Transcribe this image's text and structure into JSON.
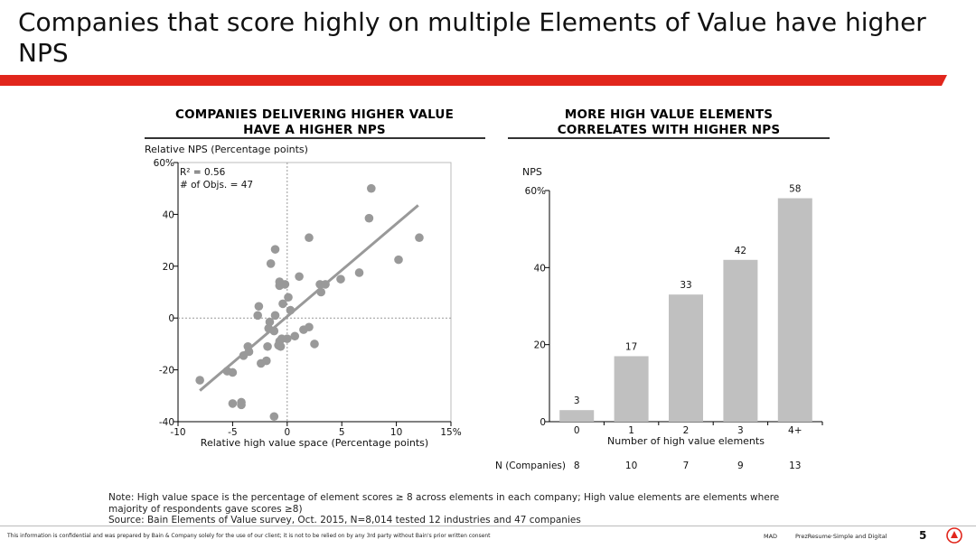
{
  "slide": {
    "title": "Companies that score highly on multiple Elements of Value have higher NPS",
    "accent_color": "#e1261c",
    "note_lines": [
      "Note: High value space is the percentage of element scores ≥ 8 across elements in each company; High value elements are elements where",
      "majority of respondents gave scores ≥8)",
      "Source: Bain Elements of Value survey, Oct. 2015, N=8,014 tested 12 industries and 47 companies"
    ],
    "footer_text": "This information is confidential and was prepared by Bain & Company solely for the use of our client; it is not to be relied on by any 3rd party without Bain's prior written consent",
    "footer_mid": "MAD",
    "footer_right": "PrezResume·Simple and Digital",
    "page_number": "5",
    "logo_icon": "bain-logo-icon"
  },
  "chart_data": [
    {
      "type": "scatter",
      "title_lines": [
        "COMPANIES DELIVERING HIGHER VALUE",
        "HAVE A HIGHER NPS"
      ],
      "ylabel": "Relative NPS (Percentage points)",
      "xlabel": "Relative high value space (Percentage points)",
      "xlim": [
        -10,
        15
      ],
      "ylim": [
        -40,
        60
      ],
      "x_ticks": [
        -10,
        -5,
        0,
        5,
        10,
        15
      ],
      "x_tick_labels": [
        "-10",
        "-5",
        "0",
        "5",
        "10",
        "15%"
      ],
      "y_ticks": [
        -40,
        -20,
        0,
        20,
        40,
        60
      ],
      "y_tick_labels": [
        "-40",
        "-20",
        "0",
        "20",
        "40",
        "60%"
      ],
      "annotations": [
        "R² = 0.56",
        "# of Objs. = 47"
      ],
      "point_color": "#999999",
      "trendline": {
        "x": [
          -8,
          12
        ],
        "y": [
          -28,
          43.5
        ]
      },
      "points": [
        {
          "x": 7.7,
          "y": 50
        },
        {
          "x": 7.5,
          "y": 38.5
        },
        {
          "x": 12.1,
          "y": 31
        },
        {
          "x": 2,
          "y": 31
        },
        {
          "x": -1.1,
          "y": 26.5
        },
        {
          "x": -1.5,
          "y": 21
        },
        {
          "x": 10.2,
          "y": 22.5
        },
        {
          "x": 6.6,
          "y": 17.5
        },
        {
          "x": 1.1,
          "y": 16
        },
        {
          "x": 4.9,
          "y": 15
        },
        {
          "x": 3,
          "y": 13
        },
        {
          "x": 3.5,
          "y": 13
        },
        {
          "x": 3.1,
          "y": 10
        },
        {
          "x": -0.7,
          "y": 14
        },
        {
          "x": -0.7,
          "y": 12.5
        },
        {
          "x": -0.2,
          "y": 13
        },
        {
          "x": 0.1,
          "y": 8
        },
        {
          "x": -0.4,
          "y": 5.5
        },
        {
          "x": 0.3,
          "y": 3
        },
        {
          "x": -2.6,
          "y": 4.5
        },
        {
          "x": -2.7,
          "y": 1
        },
        {
          "x": -1.1,
          "y": 1
        },
        {
          "x": -1.6,
          "y": -1.5
        },
        {
          "x": -1.7,
          "y": -4
        },
        {
          "x": -1.2,
          "y": -5
        },
        {
          "x": 2,
          "y": -3.5
        },
        {
          "x": 1.5,
          "y": -4.5
        },
        {
          "x": 0.7,
          "y": -7
        },
        {
          "x": 0,
          "y": -8
        },
        {
          "x": -0.5,
          "y": -8
        },
        {
          "x": -0.7,
          "y": -9
        },
        {
          "x": -0.8,
          "y": -10.5
        },
        {
          "x": -0.6,
          "y": -11
        },
        {
          "x": -1.8,
          "y": -11
        },
        {
          "x": 2.5,
          "y": -10
        },
        {
          "x": -3.6,
          "y": -11
        },
        {
          "x": -3.5,
          "y": -13
        },
        {
          "x": -4,
          "y": -14.5
        },
        {
          "x": -1.9,
          "y": -16.5
        },
        {
          "x": -2.4,
          "y": -17.5
        },
        {
          "x": -5.5,
          "y": -20.5
        },
        {
          "x": -5,
          "y": -21
        },
        {
          "x": -8,
          "y": -24
        },
        {
          "x": -5,
          "y": -33
        },
        {
          "x": -4.2,
          "y": -32.5
        },
        {
          "x": -4.2,
          "y": -33.5
        },
        {
          "x": -1.2,
          "y": -38
        }
      ]
    },
    {
      "type": "bar",
      "title_lines": [
        "MORE HIGH VALUE ELEMENTS",
        "CORRELATES WITH HIGHER NPS"
      ],
      "ylabel": "NPS",
      "xlabel": "Number of high value elements",
      "categories": [
        "0",
        "1",
        "2",
        "3",
        "4+"
      ],
      "values": [
        3,
        17,
        33,
        42,
        58
      ],
      "ylim": [
        0,
        60
      ],
      "y_ticks": [
        0,
        20,
        40,
        60
      ],
      "y_tick_labels": [
        "0",
        "20",
        "40",
        "60%"
      ],
      "bar_color": "#c0c0c0",
      "n_label": "N (Companies)",
      "n_values": [
        "8",
        "10",
        "7",
        "9",
        "13"
      ]
    }
  ]
}
